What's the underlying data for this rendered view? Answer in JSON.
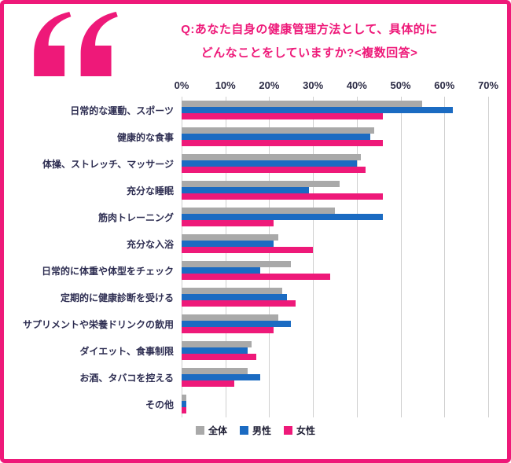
{
  "title": {
    "line1": "Q:あなた自身の健康管理方法として、具体的に",
    "line2": "どんなことをしていますか?<複数回答>"
  },
  "colors": {
    "accent_pink": "#ee1979",
    "blue": "#1b6bc2",
    "gray": "#a9a9a9",
    "frame_border": "#ee1979"
  },
  "chart_data": {
    "type": "bar",
    "orientation": "horizontal",
    "title": "Q:あなた自身の健康管理方法として、具体的にどんなことをしていますか?<複数回答>",
    "xlim": [
      0,
      70
    ],
    "xmax": 70,
    "x_ticks": [
      "0%",
      "10%",
      "20%",
      "30%",
      "40%",
      "50%",
      "60%",
      "70%"
    ],
    "grid": true,
    "legend_position": "bottom",
    "categories": [
      "日常的な運動、スポーツ",
      "健康的な食事",
      "体操、ストレッチ、マッサージ",
      "充分な睡眠",
      "筋肉トレーニング",
      "充分な入浴",
      "日常的に体重や体型をチェック",
      "定期的に健康診断を受ける",
      "サプリメントや栄養ドリンクの飲用",
      "ダイエット、食事制限",
      "お酒、タバコを控える",
      "その他"
    ],
    "series": [
      {
        "name": "全体",
        "color": "#a9a9a9",
        "values": [
          55,
          44,
          41,
          36,
          35,
          22,
          25,
          23,
          22,
          16,
          15,
          1
        ]
      },
      {
        "name": "男性",
        "color": "#1b6bc2",
        "values": [
          62,
          43,
          40,
          29,
          46,
          21,
          18,
          24,
          25,
          15,
          18,
          1
        ]
      },
      {
        "name": "女性",
        "color": "#ee1979",
        "values": [
          46,
          46,
          42,
          46,
          21,
          30,
          34,
          26,
          21,
          17,
          12,
          1
        ]
      }
    ]
  }
}
